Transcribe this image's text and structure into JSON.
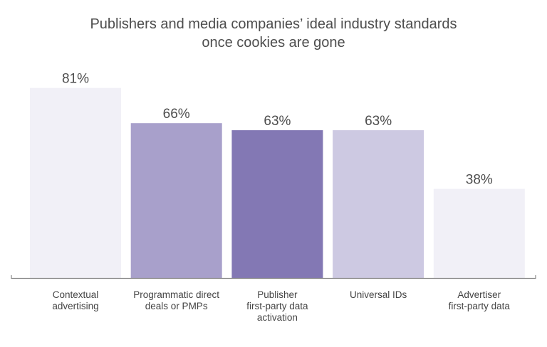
{
  "chart_data": {
    "type": "bar",
    "title_lines": [
      "Publishers and media companies’ ideal industry standards",
      "once cookies are gone"
    ],
    "categories": [
      [
        "Contextual",
        "advertising"
      ],
      [
        "Programmatic direct",
        "deals or PMPs"
      ],
      [
        "Publisher",
        "first-party data",
        "activation"
      ],
      [
        "Universal IDs"
      ],
      [
        "Advertiser",
        "first-party data"
      ]
    ],
    "values": [
      81,
      66,
      63,
      63,
      38
    ],
    "data_labels": [
      "81%",
      "66%",
      "63%",
      "63%",
      "38%"
    ],
    "colors": [
      "#f1f0f7",
      "#a8a0cb",
      "#8378b4",
      "#cdc9e2",
      "#f1f0f7"
    ],
    "ylim": [
      0,
      100
    ],
    "grid": false,
    "legend": "none"
  }
}
